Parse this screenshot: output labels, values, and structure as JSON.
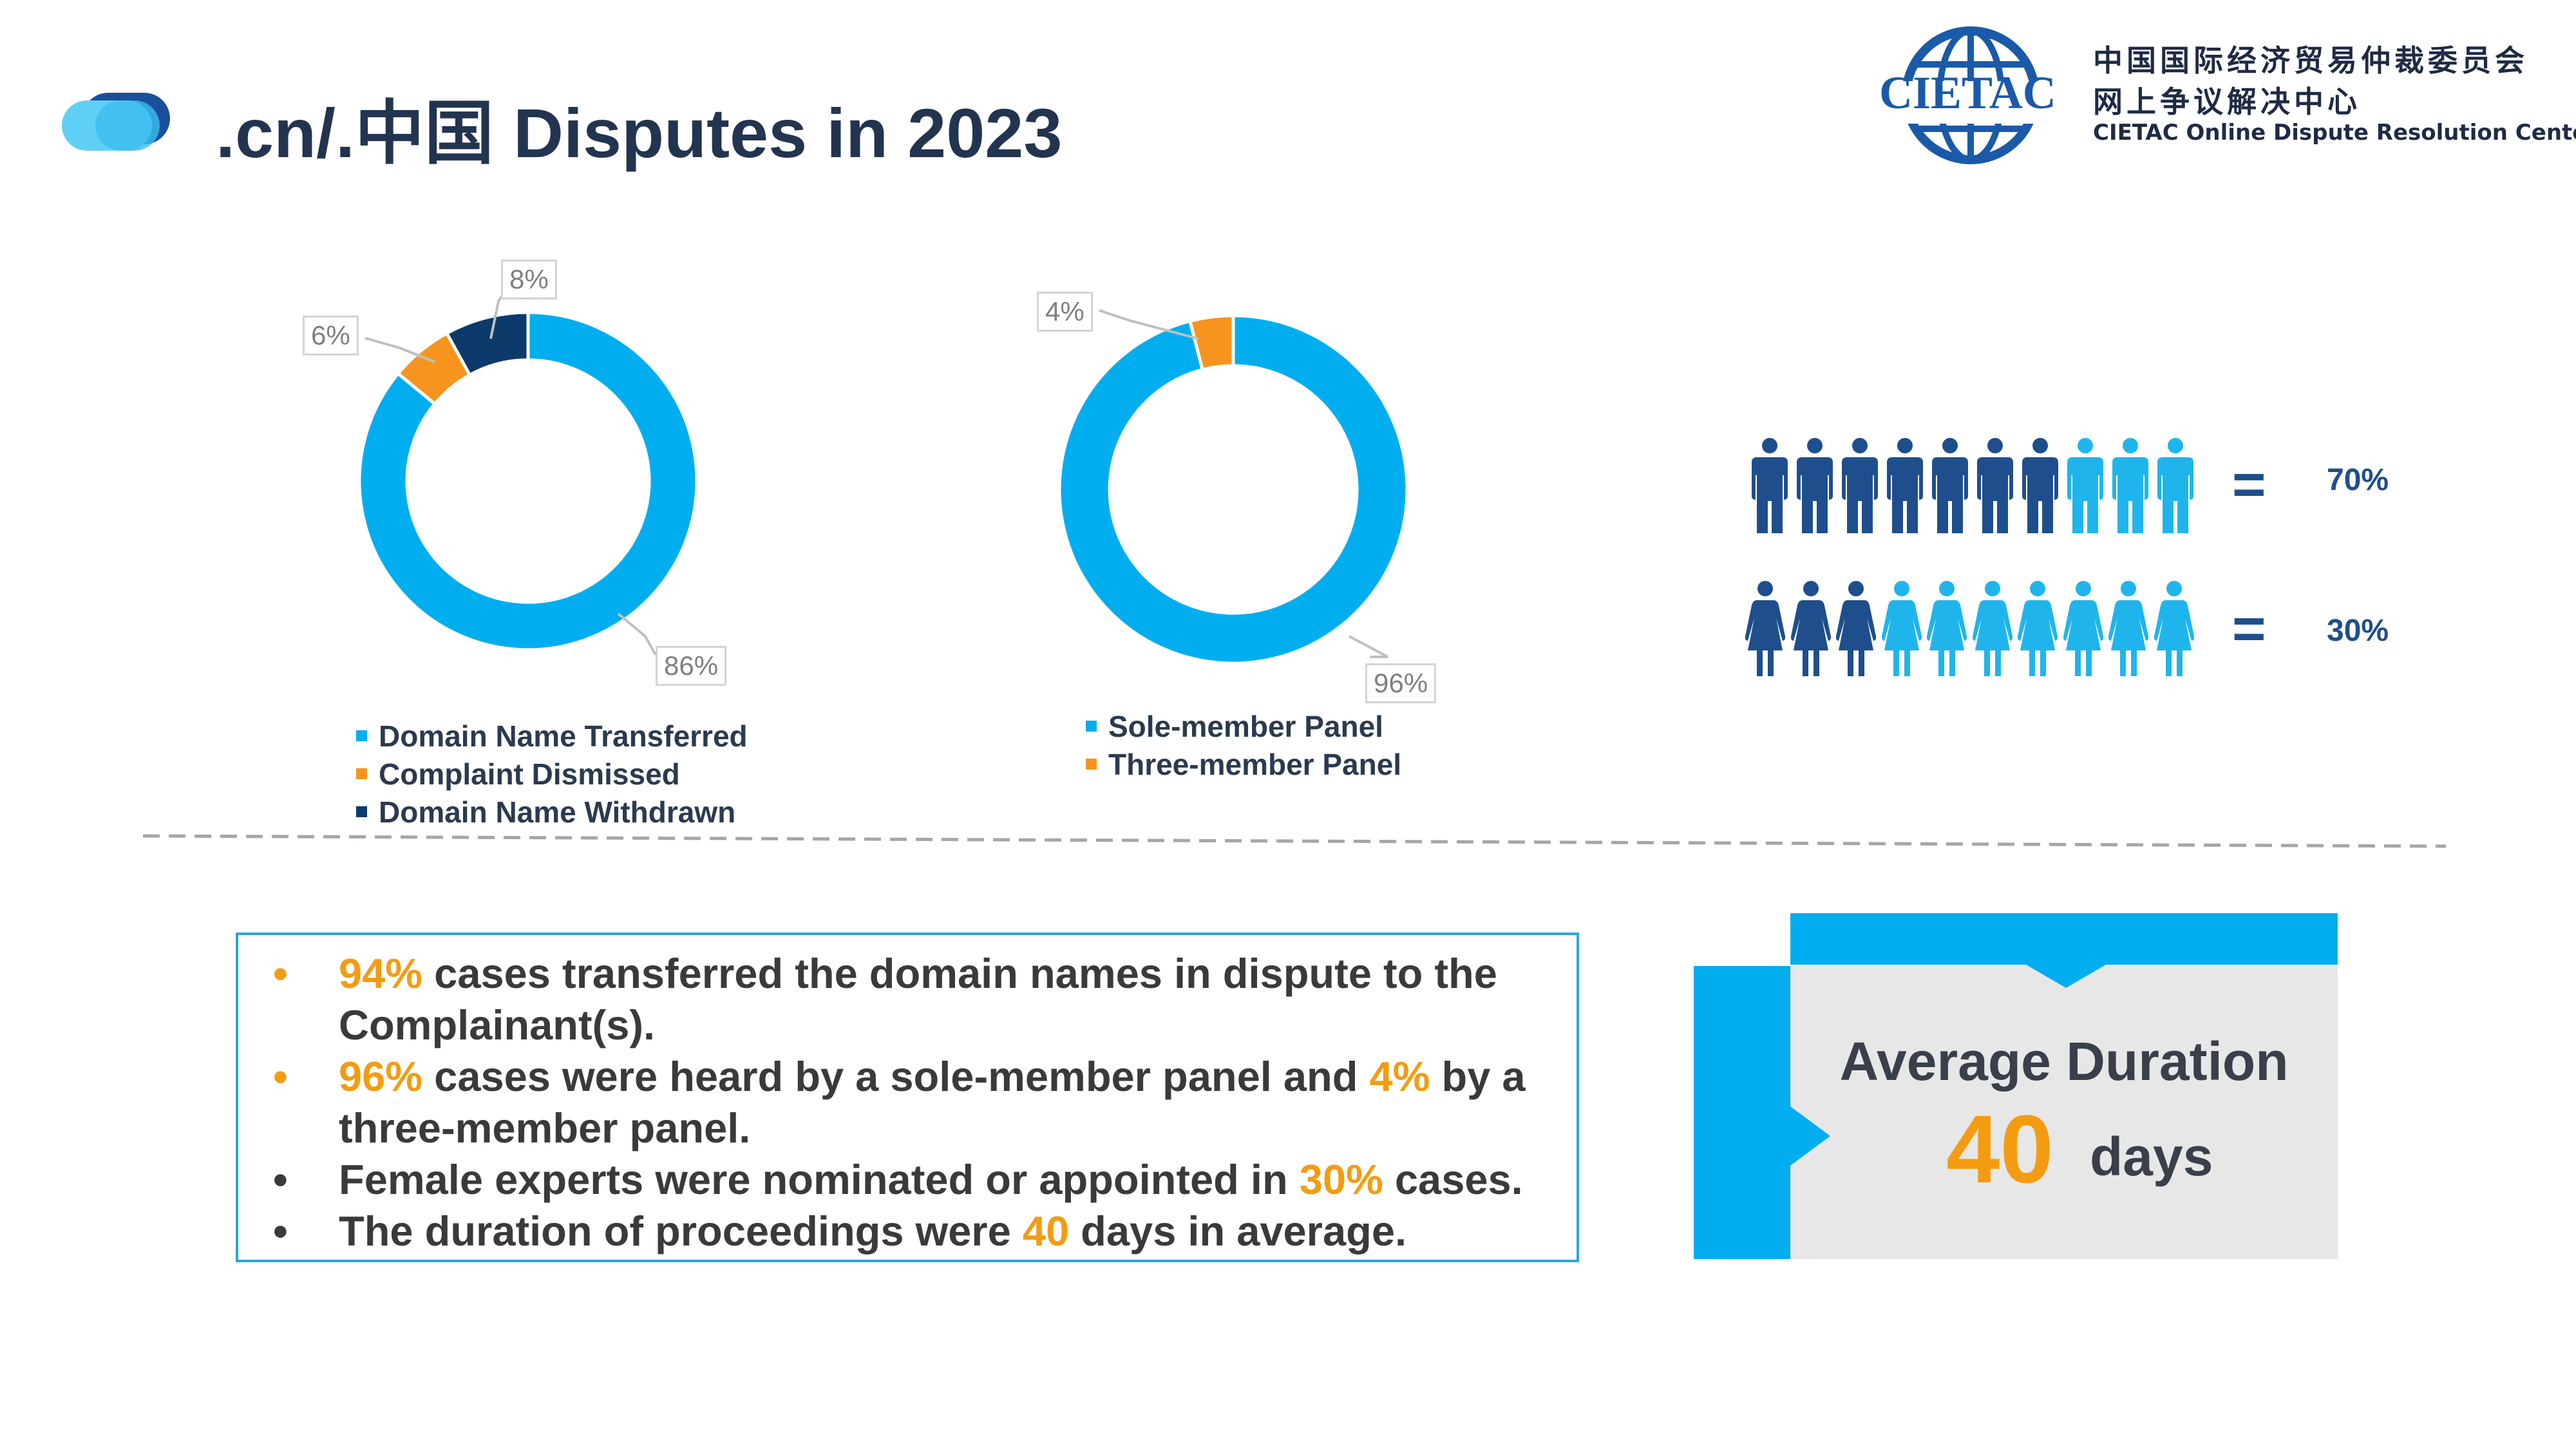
{
  "header": {
    "title": ".cn/.中国 Disputes in 2023",
    "logo_mark": "CIETAC",
    "org_cn_line1": "中国国际经济贸易仲裁委员会",
    "org_cn_line2": "网上争议解决中心",
    "org_en": "CIETAC Online Dispute Resolution Center"
  },
  "colors": {
    "light_blue": "#00AEEF",
    "orange": "#F7941D",
    "navy": "#0B3A6B",
    "person_dark": "#1F4E8C",
    "person_light": "#1FB5EC"
  },
  "chart_data": [
    {
      "type": "pie",
      "donut": true,
      "labels": [
        "Domain Name Transferred",
        "Complaint Dismissed",
        "Domain Name Withdrawn"
      ],
      "values": [
        86,
        6,
        8
      ],
      "data_labels": [
        "86%",
        "6%",
        "8%"
      ],
      "colors": [
        "#00AEEF",
        "#F7941D",
        "#0B3A6B"
      ],
      "legend_position": "bottom"
    },
    {
      "type": "pie",
      "donut": true,
      "labels": [
        "Sole-member Panel",
        "Three-member Panel"
      ],
      "values": [
        96,
        4
      ],
      "data_labels": [
        "96%",
        "4%"
      ],
      "colors": [
        "#00AEEF",
        "#F7941D"
      ],
      "legend_position": "bottom"
    }
  ],
  "gender": {
    "male": {
      "icon": "man-icon",
      "value": 70,
      "label": "70%",
      "total_icons": 10,
      "equals": "="
    },
    "female": {
      "icon": "woman-icon",
      "value": 30,
      "label": "30%",
      "total_icons": 10,
      "equals": "="
    }
  },
  "bullets": {
    "dot": "•",
    "items": [
      {
        "highlight": "94%",
        "text": " cases transferred the domain names in dispute to the Complainant(s)."
      },
      {
        "highlight": "96%",
        "text": " cases were heard by a sole-member panel and ",
        "highlight2": "4%",
        "text2": " by a three-member panel."
      },
      {
        "text": "Female experts were nominated or appointed in ",
        "highlight": "30%",
        "text2": " cases."
      },
      {
        "text": "The duration of proceedings were ",
        "highlight": "40",
        "text2": " days in average."
      }
    ]
  },
  "duration": {
    "label": "Average Duration",
    "value": "40",
    "unit": "days"
  }
}
